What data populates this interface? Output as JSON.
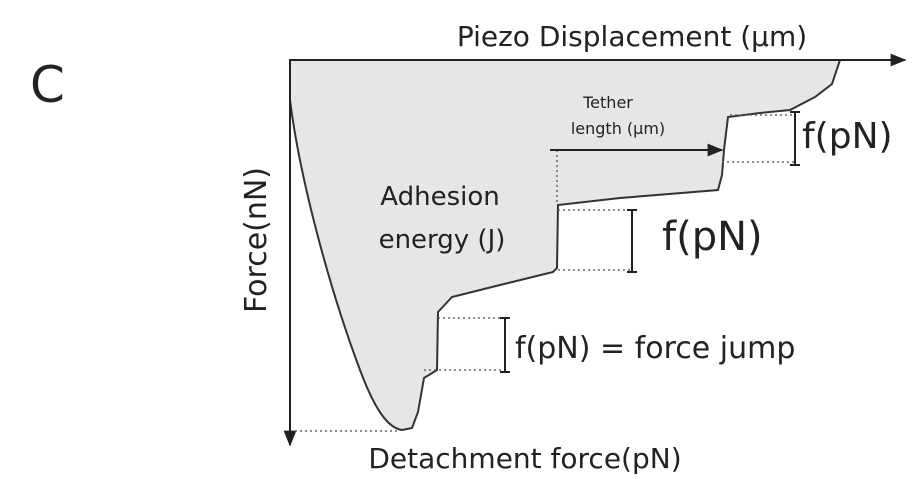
{
  "panel_label": "C",
  "x_axis_label": "Piezo Displacement (μm)",
  "y_axis_label": "Force(nN)",
  "annotations": {
    "adhesion_energy": [
      "Adhesion",
      "energy (J)"
    ],
    "tether_length": [
      "Tether",
      "length (μm)"
    ],
    "step_force_top": "f(pN)",
    "step_force_middle": "f(pN)",
    "step_force_bottom": "f(pN) = force jump",
    "detachment_force": "Detachment force(pN)"
  }
}
